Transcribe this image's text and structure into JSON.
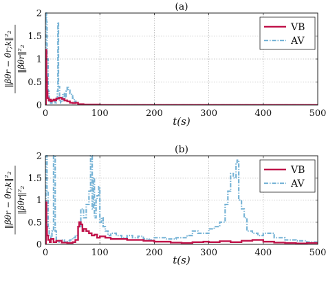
{
  "chart_data": [
    {
      "type": "line",
      "title": "(a)",
      "xlabel": "t(s)",
      "ylabel_num": "‖βθr − θ̂r;k‖²₂",
      "ylabel_den": "‖βθr‖²₂",
      "xlim": [
        0,
        500
      ],
      "ylim": [
        0,
        2
      ],
      "xticks": [
        0,
        100,
        200,
        300,
        400,
        500
      ],
      "yticks": [
        0,
        0.5,
        1,
        1.5,
        2
      ],
      "xtick_labels": [
        "0",
        "100",
        "200",
        "300",
        "400",
        "500"
      ],
      "ytick_labels": [
        "0",
        "0.5",
        "1",
        "1.5",
        "2"
      ],
      "grid": true,
      "legend_position": "top-right",
      "legend": [
        "VB",
        "AV"
      ],
      "series": [
        {
          "name": "VB",
          "color": "#c0134a",
          "style": "solid",
          "x": [
            0,
            1,
            2,
            3,
            4,
            6,
            8,
            10,
            12,
            15,
            18,
            20,
            25,
            30,
            35,
            40,
            45,
            50,
            55,
            60,
            70,
            100,
            200,
            300,
            400,
            500
          ],
          "y": [
            0,
            1.2,
            0.6,
            0.3,
            0.15,
            0.1,
            0.12,
            0.08,
            0.1,
            0.12,
            0.1,
            0.14,
            0.16,
            0.13,
            0.1,
            0.08,
            0.05,
            0.04,
            0.05,
            0.02,
            0.01,
            0.0,
            0.0,
            0.0,
            0.0,
            0.0
          ]
        },
        {
          "name": "AV",
          "color": "#78b4d6",
          "style": "dashdot",
          "x": [
            0,
            1,
            2,
            3,
            5,
            7,
            10,
            12,
            14,
            16,
            18,
            20,
            22,
            23,
            24,
            26,
            28,
            30,
            32,
            35,
            38,
            40,
            42,
            45,
            48,
            50,
            53,
            56,
            60,
            65,
            70,
            100,
            200,
            300,
            400,
            500
          ],
          "y": [
            0.1,
            2.0,
            1.8,
            1.0,
            0.3,
            0.05,
            0.04,
            0.06,
            0.1,
            0.08,
            0.05,
            0.12,
            0.3,
            1.8,
            0.4,
            0.1,
            0.05,
            0.1,
            0.25,
            0.15,
            0.3,
            0.38,
            0.32,
            0.25,
            0.2,
            0.15,
            0.08,
            0.05,
            0.02,
            0.01,
            0.0,
            0.0,
            0.0,
            0.0,
            0.0,
            0.0
          ]
        }
      ]
    },
    {
      "type": "line",
      "title": "(b)",
      "xlabel": "t(s)",
      "ylabel_num": "‖βθr − θ̂r;k‖²₂",
      "ylabel_den": "‖βθr‖²₂",
      "xlim": [
        0,
        500
      ],
      "ylim": [
        0,
        2
      ],
      "xticks": [
        0,
        100,
        200,
        300,
        400,
        500
      ],
      "yticks": [
        0,
        0.5,
        1,
        1.5,
        2
      ],
      "xtick_labels": [
        "0",
        "100",
        "200",
        "300",
        "400",
        "500"
      ],
      "ytick_labels": [
        "0",
        "0.5",
        "1",
        "1.5",
        "2"
      ],
      "grid": true,
      "legend_position": "top-right",
      "legend": [
        "VB",
        "AV"
      ],
      "series": [
        {
          "name": "VB",
          "color": "#c0134a",
          "style": "solid",
          "x": [
            0,
            1,
            2,
            3,
            5,
            8,
            10,
            15,
            20,
            30,
            40,
            50,
            55,
            60,
            62,
            65,
            68,
            70,
            75,
            80,
            85,
            90,
            95,
            100,
            110,
            120,
            150,
            180,
            200,
            230,
            250,
            270,
            290,
            300,
            320,
            340,
            360,
            380,
            400,
            420,
            440,
            460,
            480,
            500
          ],
          "y": [
            0,
            0.95,
            0.4,
            0.2,
            0.1,
            0.05,
            0.12,
            0.05,
            0.08,
            0.04,
            0.03,
            0.05,
            0.1,
            0.4,
            0.5,
            0.45,
            0.3,
            0.35,
            0.3,
            0.25,
            0.2,
            0.22,
            0.15,
            0.18,
            0.15,
            0.12,
            0.1,
            0.08,
            0.06,
            0.04,
            0.03,
            0.05,
            0.06,
            0.05,
            0.07,
            0.05,
            0.08,
            0.1,
            0.06,
            0.04,
            0.03,
            0.02,
            0.03,
            0.01
          ]
        },
        {
          "name": "AV",
          "color": "#78b4d6",
          "style": "dashdot",
          "x": [
            0,
            1,
            2,
            3,
            5,
            7,
            10,
            12,
            15,
            18,
            20,
            22,
            25,
            30,
            35,
            40,
            45,
            50,
            55,
            60,
            65,
            70,
            75,
            80,
            83,
            86,
            88,
            90,
            93,
            95,
            98,
            100,
            103,
            106,
            110,
            115,
            120,
            130,
            140,
            150,
            160,
            170,
            180,
            190,
            200,
            220,
            240,
            260,
            270,
            280,
            300,
            310,
            320,
            330,
            335,
            340,
            345,
            350,
            352,
            355,
            360,
            365,
            370,
            380,
            390,
            400,
            420,
            440,
            460,
            480,
            500
          ],
          "y": [
            0.2,
            1.8,
            2.0,
            1.2,
            0.4,
            0.2,
            0.1,
            0.3,
            2.0,
            0.3,
            0.1,
            0.05,
            0.08,
            0.1,
            0.05,
            0.08,
            0.1,
            0.15,
            0.2,
            0.4,
            0.8,
            0.6,
            0.9,
            1.2,
            2.0,
            0.8,
            1.5,
            0.6,
            1.0,
            1.1,
            1.3,
            0.5,
            0.6,
            0.4,
            0.3,
            0.2,
            0.25,
            0.2,
            0.15,
            0.2,
            0.15,
            0.18,
            0.12,
            0.1,
            0.15,
            0.12,
            0.15,
            0.2,
            0.3,
            0.25,
            0.35,
            0.4,
            0.5,
            0.9,
            1.2,
            1.6,
            1.5,
            1.85,
            1.9,
            1.0,
            0.8,
            0.6,
            0.3,
            0.25,
            0.2,
            0.25,
            0.15,
            0.1,
            0.08,
            0.05,
            0.05
          ]
        }
      ]
    }
  ]
}
